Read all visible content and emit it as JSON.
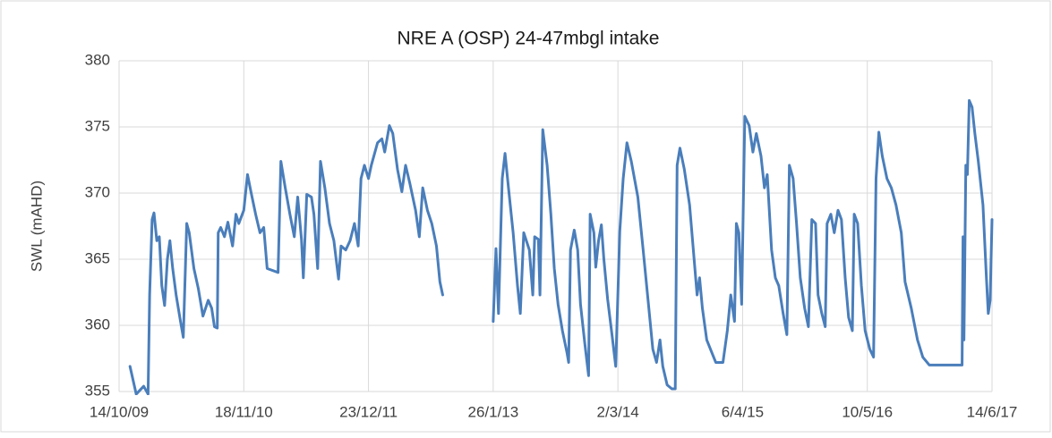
{
  "chart_data": {
    "type": "line",
    "title": "NRE A (OSP) 24-47mbgl intake",
    "y_label": "SWL (mAHD)",
    "color": "#4a7ebb",
    "grid": true,
    "xlim": [
      "2009-10-14",
      "2017-06-14"
    ],
    "xticks": [
      {
        "value": "2009-10-14",
        "label": "14/10/09"
      },
      {
        "value": "2010-11-18",
        "label": "18/11/10"
      },
      {
        "value": "2011-12-23",
        "label": "23/12/11"
      },
      {
        "value": "2013-01-26",
        "label": "26/1/13"
      },
      {
        "value": "2014-03-02",
        "label": "2/3/14"
      },
      {
        "value": "2015-04-06",
        "label": "6/4/15"
      },
      {
        "value": "2016-05-10",
        "label": "10/5/16"
      },
      {
        "value": "2017-06-14",
        "label": "14/6/17"
      }
    ],
    "ylim": [
      355,
      380
    ],
    "yticks": [
      355,
      360,
      365,
      370,
      375,
      380
    ],
    "x": [
      "2009-11-18",
      "2009-12-08",
      "2010-01-01",
      "2010-01-15",
      "2010-01-20",
      "2010-01-28",
      "2010-02-03",
      "2010-02-12",
      "2010-02-20",
      "2010-02-28",
      "2010-03-09",
      "2010-03-18",
      "2010-03-26",
      "2010-04-04",
      "2010-04-15",
      "2010-04-29",
      "2010-05-08",
      "2010-05-19",
      "2010-05-27",
      "2010-06-11",
      "2010-06-25",
      "2010-07-10",
      "2010-07-27",
      "2010-08-07",
      "2010-08-16",
      "2010-08-25",
      "2010-08-28",
      "2010-09-05",
      "2010-09-17",
      "2010-09-28",
      "2010-10-13",
      "2010-10-24",
      "2010-11-02",
      "2010-11-18",
      "2010-11-30",
      "2010-12-11",
      "2010-12-26",
      "2011-01-09",
      "2011-01-21",
      "2011-02-01",
      "2011-03-08",
      "2011-03-17",
      "2011-03-31",
      "2011-04-15",
      "2011-04-29",
      "2011-05-10",
      "2011-05-22",
      "2011-05-28",
      "2011-06-08",
      "2011-06-23",
      "2011-07-01",
      "2011-07-13",
      "2011-07-22",
      "2011-08-05",
      "2011-08-20",
      "2011-09-03",
      "2011-09-18",
      "2011-09-26",
      "2011-10-11",
      "2011-10-25",
      "2011-11-08",
      "2011-11-20",
      "2011-11-29",
      "2011-12-10",
      "2011-12-23",
      "2012-01-01",
      "2012-01-21",
      "2012-02-04",
      "2012-02-13",
      "2012-02-28",
      "2012-03-10",
      "2012-03-25",
      "2012-04-08",
      "2012-04-20",
      "2012-05-04",
      "2012-05-22",
      "2012-06-03",
      "2012-06-14",
      "2012-06-29",
      "2012-07-13",
      "2012-07-28",
      "2012-08-08",
      "2012-08-17",
      "2012-11-01",
      "2013-01-26",
      "2013-02-04",
      "2013-02-12",
      "2013-02-24",
      "2013-03-05",
      "2013-03-16",
      "2013-03-31",
      "2013-04-14",
      "2013-04-23",
      "2013-05-04",
      "2013-05-22",
      "2013-06-02",
      "2013-06-08",
      "2013-06-20",
      "2013-06-25",
      "2013-07-04",
      "2013-07-18",
      "2013-07-30",
      "2013-08-10",
      "2013-08-22",
      "2013-09-05",
      "2013-09-20",
      "2013-09-25",
      "2013-10-01",
      "2013-10-13",
      "2013-10-24",
      "2013-11-02",
      "2013-11-16",
      "2013-11-28",
      "2013-12-03",
      "2013-12-15",
      "2013-12-21",
      "2013-12-30",
      "2014-01-08",
      "2014-01-16",
      "2014-01-28",
      "2014-02-11",
      "2014-02-23",
      "2014-03-08",
      "2014-03-19",
      "2014-03-31",
      "2014-04-14",
      "2014-05-05",
      "2014-05-22",
      "2014-06-08",
      "2014-06-22",
      "2014-07-04",
      "2014-07-15",
      "2014-07-24",
      "2014-08-07",
      "2014-08-22",
      "2014-09-02",
      "2014-09-08",
      "2014-09-17",
      "2014-10-01",
      "2014-10-18",
      "2014-10-30",
      "2014-11-11",
      "2014-11-19",
      "2014-11-28",
      "2014-12-12",
      "2014-12-29",
      "2015-01-10",
      "2015-02-02",
      "2015-02-16",
      "2015-02-27",
      "2015-03-05",
      "2015-03-11",
      "2015-03-17",
      "2015-03-25",
      "2015-04-03",
      "2015-04-13",
      "2015-04-27",
      "2015-05-09",
      "2015-05-20",
      "2015-06-04",
      "2015-06-15",
      "2015-06-24",
      "2015-07-08",
      "2015-07-20",
      "2015-07-31",
      "2015-08-14",
      "2015-08-26",
      "2015-09-03",
      "2015-09-15",
      "2015-09-26",
      "2015-10-08",
      "2015-10-22",
      "2015-11-03",
      "2015-11-14",
      "2015-11-26",
      "2015-12-04",
      "2015-12-16",
      "2015-12-27",
      "2016-01-02",
      "2016-01-14",
      "2016-01-25",
      "2016-02-06",
      "2016-02-17",
      "2016-02-29",
      "2016-03-11",
      "2016-03-23",
      "2016-03-29",
      "2016-04-09",
      "2016-04-21",
      "2016-05-03",
      "2016-05-18",
      "2016-05-30",
      "2016-06-07",
      "2016-06-16",
      "2016-06-27",
      "2016-07-12",
      "2016-07-26",
      "2016-08-10",
      "2016-08-27",
      "2016-09-08",
      "2016-09-28",
      "2016-10-18",
      "2016-11-04",
      "2016-11-25",
      "2017-03-10",
      "2017-03-13",
      "2017-03-16",
      "2017-03-22",
      "2017-03-27",
      "2017-04-02",
      "2017-04-11",
      "2017-04-20",
      "2017-05-01",
      "2017-05-16",
      "2017-05-27",
      "2017-06-02",
      "2017-06-08",
      "2017-06-14"
    ],
    "values": [
      356.9,
      354.8,
      355.4,
      354.8,
      362.3,
      368.0,
      368.5,
      366.4,
      366.7,
      363.0,
      361.5,
      365.0,
      366.4,
      364.3,
      362.3,
      360.3,
      359.1,
      367.7,
      367.0,
      364.3,
      362.8,
      360.7,
      361.9,
      361.3,
      359.9,
      359.8,
      367.0,
      367.4,
      366.7,
      367.8,
      366.0,
      368.4,
      367.7,
      368.7,
      371.4,
      370.1,
      368.4,
      367.0,
      367.4,
      364.3,
      364.0,
      372.4,
      370.4,
      368.4,
      366.7,
      369.7,
      366.5,
      363.6,
      369.9,
      369.7,
      368.4,
      364.3,
      372.4,
      370.4,
      367.7,
      366.4,
      363.5,
      366.0,
      365.7,
      366.4,
      367.7,
      366.0,
      371.1,
      372.1,
      371.1,
      372.1,
      373.8,
      374.1,
      373.1,
      375.1,
      374.5,
      371.8,
      370.1,
      372.1,
      370.7,
      368.7,
      366.7,
      370.4,
      368.7,
      367.7,
      366.0,
      363.3,
      362.3,
      null,
      360.3,
      365.8,
      360.9,
      371.1,
      373.0,
      370.4,
      367.0,
      363.0,
      360.9,
      367.0,
      365.7,
      362.3,
      366.7,
      366.5,
      362.3,
      374.8,
      372.1,
      368.4,
      364.3,
      361.6,
      359.6,
      357.9,
      357.2,
      365.7,
      367.2,
      365.7,
      361.6,
      358.6,
      356.2,
      368.4,
      367.0,
      364.4,
      366.4,
      367.6,
      365.0,
      362.0,
      359.3,
      356.9,
      367.1,
      371.1,
      373.8,
      372.4,
      369.7,
      365.7,
      361.6,
      358.2,
      357.2,
      358.9,
      356.9,
      355.5,
      355.2,
      355.2,
      372.1,
      373.4,
      371.8,
      369.1,
      365.7,
      362.3,
      363.6,
      361.3,
      358.9,
      357.9,
      357.2,
      357.2,
      359.6,
      362.3,
      361.3,
      360.3,
      367.7,
      367.0,
      361.6,
      375.8,
      375.1,
      373.1,
      374.5,
      372.8,
      370.4,
      371.4,
      365.7,
      363.6,
      363.0,
      360.9,
      359.3,
      372.1,
      371.1,
      367.7,
      363.6,
      361.3,
      359.9,
      368.0,
      367.7,
      362.3,
      360.9,
      359.9,
      367.7,
      368.4,
      367.0,
      368.7,
      368.0,
      363.6,
      360.6,
      359.6,
      368.4,
      367.7,
      363.0,
      359.6,
      358.2,
      357.6,
      371.1,
      374.6,
      372.8,
      371.1,
      370.4,
      369.1,
      367.0,
      363.3,
      361.3,
      358.9,
      357.6,
      357.0,
      357.0,
      366.7,
      358.9,
      372.1,
      371.4,
      377.0,
      376.5,
      374.5,
      372.4,
      369.1,
      363.6,
      360.9,
      361.9,
      368.0
    ]
  }
}
